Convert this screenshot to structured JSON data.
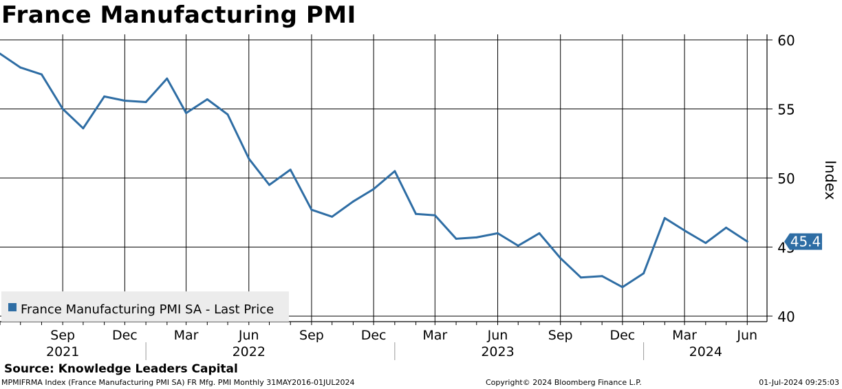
{
  "chart_data": {
    "type": "line",
    "title": "France Manufacturing PMI",
    "ylabel": "Index",
    "ylim": [
      39.6,
      60.4
    ],
    "yticks": [
      40,
      45,
      50,
      55,
      60
    ],
    "xlim": [
      "2021-06-01",
      "2024-06-30"
    ],
    "grid": true,
    "legend": {
      "position": "bottom-left",
      "label": "France Manufacturing PMI SA - Last Price"
    },
    "last_value_label": "45.4",
    "colors": {
      "line": "#2e6da4",
      "label_fill": "#2e6da4",
      "label_text": "#ffffff"
    },
    "x_month_ticks": [
      {
        "date": "2021-09-01",
        "label": "Sep"
      },
      {
        "date": "2021-12-01",
        "label": "Dec"
      },
      {
        "date": "2022-03-01",
        "label": "Mar"
      },
      {
        "date": "2022-06-01",
        "label": "Jun"
      },
      {
        "date": "2022-09-01",
        "label": "Sep"
      },
      {
        "date": "2022-12-01",
        "label": "Dec"
      },
      {
        "date": "2023-03-01",
        "label": "Mar"
      },
      {
        "date": "2023-06-01",
        "label": "Jun"
      },
      {
        "date": "2023-09-01",
        "label": "Sep"
      },
      {
        "date": "2023-12-01",
        "label": "Dec"
      },
      {
        "date": "2024-03-01",
        "label": "Mar"
      },
      {
        "date": "2024-06-01",
        "label": "Jun"
      }
    ],
    "x_year_labels": [
      {
        "date": "2021-09-01",
        "label": "2021"
      },
      {
        "date": "2022-06-01",
        "label": "2022"
      },
      {
        "date": "2023-06-01",
        "label": "2023"
      },
      {
        "date": "2024-04-01",
        "label": "2024"
      }
    ],
    "series": [
      {
        "name": "France Manufacturing PMI SA - Last Price",
        "x": [
          "2021-06",
          "2021-07",
          "2021-08",
          "2021-09",
          "2021-10",
          "2021-11",
          "2021-12",
          "2022-01",
          "2022-02",
          "2022-03",
          "2022-04",
          "2022-05",
          "2022-06",
          "2022-07",
          "2022-08",
          "2022-09",
          "2022-10",
          "2022-11",
          "2022-12",
          "2023-01",
          "2023-02",
          "2023-03",
          "2023-04",
          "2023-05",
          "2023-06",
          "2023-07",
          "2023-08",
          "2023-09",
          "2023-10",
          "2023-11",
          "2023-12",
          "2024-01",
          "2024-02",
          "2024-03",
          "2024-04",
          "2024-05",
          "2024-06"
        ],
        "values": [
          59.0,
          58.0,
          57.5,
          55.0,
          53.6,
          55.9,
          55.6,
          55.5,
          57.2,
          54.7,
          55.7,
          54.6,
          51.4,
          49.5,
          50.6,
          47.7,
          47.2,
          48.3,
          49.2,
          50.5,
          47.4,
          47.3,
          45.6,
          45.7,
          46.0,
          45.1,
          46.0,
          44.2,
          42.8,
          42.9,
          42.1,
          43.1,
          47.1,
          46.2,
          45.3,
          46.4,
          45.4
        ]
      }
    ]
  },
  "source": "Source: Knowledge Leaders Capital",
  "footer": {
    "left": "MPMIFRMA Index (France Manufacturing PMI SA) FR Mfg. PMI  Monthly 31MAY2016-01JUL2024",
    "center": "Copyright© 2024 Bloomberg Finance L.P.",
    "right": "01-Jul-2024 09:25:03"
  }
}
